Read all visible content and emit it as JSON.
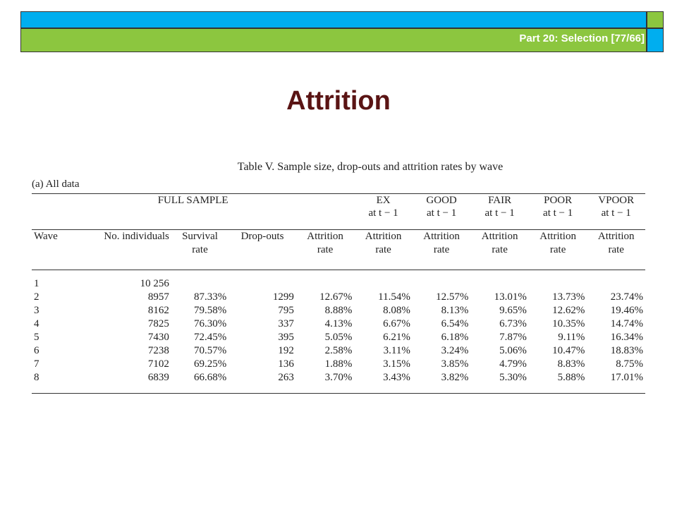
{
  "header": {
    "part_label": "Part 20: Selection [77/66]"
  },
  "slide": {
    "title": "Attrition"
  },
  "table": {
    "caption": "Table V. Sample size, drop-outs and attrition rates by wave",
    "subtitle": "(a)  All data",
    "group_full": "FULL SAMPLE",
    "groups": [
      {
        "line1": "EX",
        "line2": "at t − 1"
      },
      {
        "line1": "GOOD",
        "line2": "at t − 1"
      },
      {
        "line1": "FAIR",
        "line2": "at t − 1"
      },
      {
        "line1": "POOR",
        "line2": "at t − 1"
      },
      {
        "line1": "VPOOR",
        "line2": "at t − 1"
      }
    ],
    "columns": [
      {
        "line1": "Wave",
        "line2": ""
      },
      {
        "line1": "No. individuals",
        "line2": ""
      },
      {
        "line1": "Survival",
        "line2": "rate"
      },
      {
        "line1": "Drop-outs",
        "line2": ""
      },
      {
        "line1": "Attrition",
        "line2": "rate"
      },
      {
        "line1": "Attrition",
        "line2": "rate"
      },
      {
        "line1": "Attrition",
        "line2": "rate"
      },
      {
        "line1": "Attrition",
        "line2": "rate"
      },
      {
        "line1": "Attrition",
        "line2": "rate"
      },
      {
        "line1": "Attrition",
        "line2": "rate"
      }
    ],
    "rows": [
      [
        "1",
        "10 256",
        "",
        "",
        "",
        "",
        "",
        "",
        "",
        ""
      ],
      [
        "2",
        "8957",
        "87.33%",
        "1299",
        "12.67%",
        "11.54%",
        "12.57%",
        "13.01%",
        "13.73%",
        "23.74%"
      ],
      [
        "3",
        "8162",
        "79.58%",
        "795",
        "8.88%",
        "8.08%",
        "8.13%",
        "9.65%",
        "12.62%",
        "19.46%"
      ],
      [
        "4",
        "7825",
        "76.30%",
        "337",
        "4.13%",
        "6.67%",
        "6.54%",
        "6.73%",
        "10.35%",
        "14.74%"
      ],
      [
        "5",
        "7430",
        "72.45%",
        "395",
        "5.05%",
        "6.21%",
        "6.18%",
        "7.87%",
        "9.11%",
        "16.34%"
      ],
      [
        "6",
        "7238",
        "70.57%",
        "192",
        "2.58%",
        "3.11%",
        "3.24%",
        "5.06%",
        "10.47%",
        "18.83%"
      ],
      [
        "7",
        "7102",
        "69.25%",
        "136",
        "1.88%",
        "3.15%",
        "3.85%",
        "4.79%",
        "8.83%",
        "8.75%"
      ],
      [
        "8",
        "6839",
        "66.68%",
        "263",
        "3.70%",
        "3.43%",
        "3.82%",
        "5.30%",
        "5.88%",
        "17.01%"
      ]
    ]
  }
}
